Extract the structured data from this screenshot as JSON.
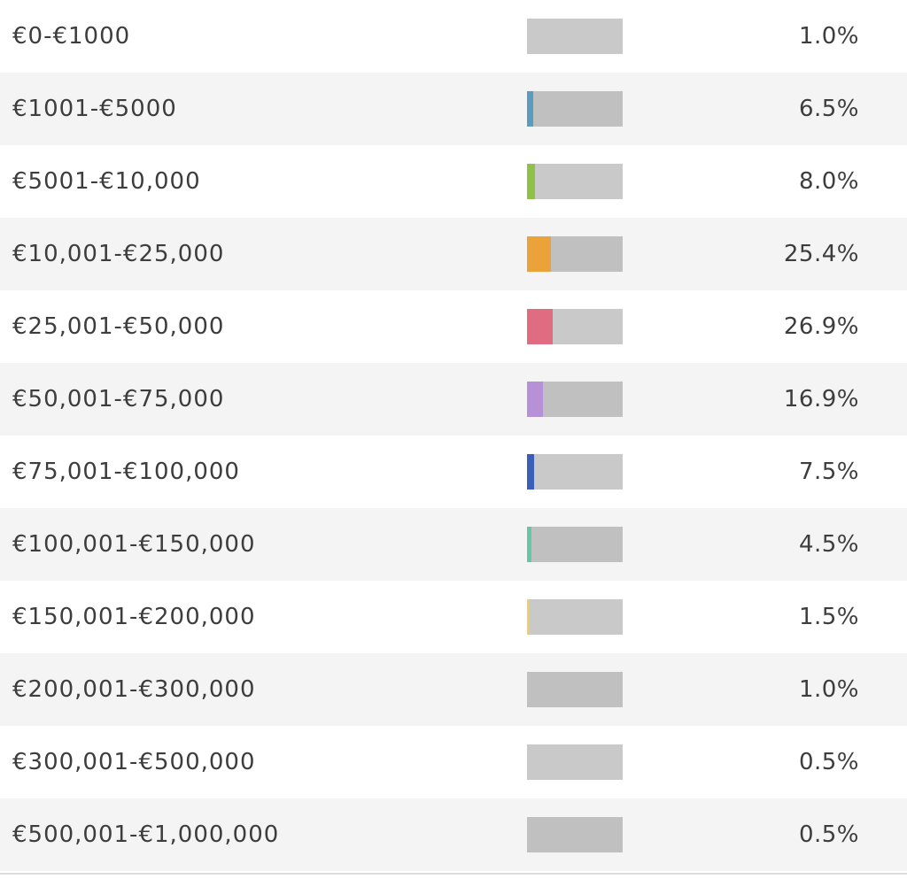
{
  "chart_data": {
    "type": "bar",
    "orientation": "horizontal",
    "xlim": [
      0,
      100
    ],
    "categories": [
      "€0-€1000",
      "€1001-€5000",
      "€5001-€10,000",
      "€10,001-€25,000",
      "€25,001-€50,000",
      "€50,001-€75,000",
      "€75,001-€100,000",
      "€100,001-€150,000",
      "€150,001-€200,000",
      "€200,001-€300,000",
      "€300,001-€500,000",
      "€500,001-€1,000,000"
    ],
    "values": [
      1.0,
      6.5,
      8.0,
      25.4,
      26.9,
      16.9,
      7.5,
      4.5,
      1.5,
      1.0,
      0.5,
      0.5
    ],
    "value_labels": [
      "1.0%",
      "6.5%",
      "8.0%",
      "25.4%",
      "26.9%",
      "16.9%",
      "7.5%",
      "4.5%",
      "1.5%",
      "1.0%",
      "0.5%",
      "0.5%"
    ],
    "colors": [
      "#c9c9c9",
      "#5b9bbf",
      "#8fc148",
      "#eba23a",
      "#e06c82",
      "#b791d8",
      "#3a5fb8",
      "#66c7a5",
      "#f4cf63",
      "#c0c0c0",
      "#c9c9c9",
      "#c0c0c0"
    ]
  }
}
